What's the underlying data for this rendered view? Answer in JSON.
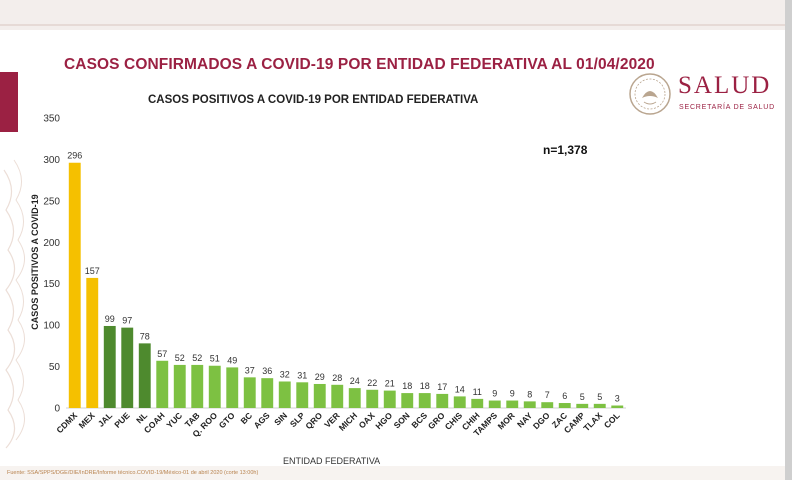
{
  "main_title": "CASOS CONFIRMADOS A COVID-19 POR ENTIDAD FEDERATIVA AL 01/04/2020",
  "logo": {
    "name": "SALUD",
    "subtitle": "SECRETARÍA DE SALUD"
  },
  "total_label": "n=1,378",
  "source_note": "Fuente: SSA/SPPS/DGE/DIE/InDRE/Informe técnico.COVID-19/México-01 de abril 2020 (corte 13:00h)",
  "colors": {
    "accent": "#9b2143",
    "gold": "#f5c000",
    "dark_green": "#4e8a2e",
    "light_green": "#7dc142"
  },
  "chart_data": {
    "type": "bar",
    "title": "CASOS POSITIVOS A COVID-19 POR ENTIDAD FEDERATIVA",
    "xlabel": "ENTIDAD FEDERATIVA",
    "ylabel": "CASOS POSITIVOS A COVID-19",
    "ylim": [
      0,
      350
    ],
    "yticks": [
      0,
      50,
      100,
      150,
      200,
      250,
      300,
      350
    ],
    "grid": false,
    "categories": [
      "CDMX",
      "MEX",
      "JAL",
      "PUE",
      "NL",
      "COAH",
      "YUC",
      "TAB",
      "Q. ROO",
      "GTO",
      "BC",
      "AGS",
      "SIN",
      "SLP",
      "QRO",
      "VER",
      "MICH",
      "OAX",
      "HGO",
      "SON",
      "BCS",
      "GRO",
      "CHIS",
      "CHIH",
      "TAMPS",
      "MOR",
      "NAY",
      "DGO",
      "ZAC",
      "CAMP",
      "TLAX",
      "COL"
    ],
    "values": [
      296,
      157,
      99,
      97,
      78,
      57,
      52,
      52,
      51,
      49,
      37,
      36,
      32,
      31,
      29,
      28,
      24,
      22,
      21,
      18,
      18,
      17,
      14,
      11,
      9,
      9,
      8,
      7,
      6,
      5,
      5,
      3
    ],
    "bar_colors": [
      "#f5c000",
      "#f5c000",
      "#4e8a2e",
      "#4e8a2e",
      "#4e8a2e",
      "#7dc142",
      "#7dc142",
      "#7dc142",
      "#7dc142",
      "#7dc142",
      "#7dc142",
      "#7dc142",
      "#7dc142",
      "#7dc142",
      "#7dc142",
      "#7dc142",
      "#7dc142",
      "#7dc142",
      "#7dc142",
      "#7dc142",
      "#7dc142",
      "#7dc142",
      "#7dc142",
      "#7dc142",
      "#7dc142",
      "#7dc142",
      "#7dc142",
      "#7dc142",
      "#7dc142",
      "#7dc142",
      "#7dc142",
      "#7dc142"
    ]
  }
}
